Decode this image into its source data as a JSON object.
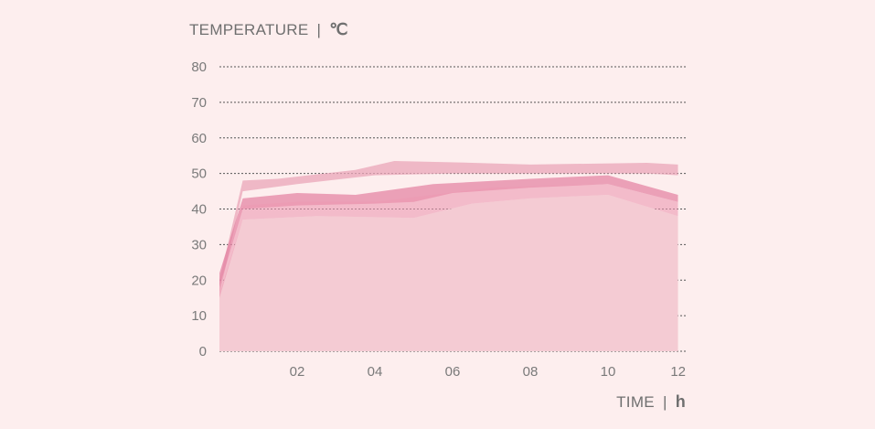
{
  "chart_data": {
    "type": "area",
    "y_axis_title": "TEMPERATURE",
    "y_axis_separator": "|",
    "y_axis_unit": "℃",
    "x_axis_title": "TIME",
    "x_axis_separator": "|",
    "x_axis_unit": "h",
    "ylim": [
      0,
      80
    ],
    "xlim": [
      0,
      12
    ],
    "y_ticks": [
      {
        "value": 0,
        "label": "0"
      },
      {
        "value": 10,
        "label": "10"
      },
      {
        "value": 20,
        "label": "20"
      },
      {
        "value": 30,
        "label": "30"
      },
      {
        "value": 40,
        "label": "40"
      },
      {
        "value": 50,
        "label": "50"
      },
      {
        "value": 60,
        "label": "60"
      },
      {
        "value": 70,
        "label": "70"
      },
      {
        "value": 80,
        "label": "80"
      }
    ],
    "x_ticks": [
      {
        "value": 2,
        "label": "02"
      },
      {
        "value": 4,
        "label": "04"
      },
      {
        "value": 6,
        "label": "06"
      },
      {
        "value": 8,
        "label": "08"
      },
      {
        "value": 10,
        "label": "10"
      },
      {
        "value": 12,
        "label": "12"
      }
    ],
    "grid": true,
    "bands": [
      {
        "color": "#eaa5b8",
        "opacity": 0.75,
        "upper": [
          [
            0,
            20
          ],
          [
            0.6,
            48
          ],
          [
            1.5,
            48.5
          ],
          [
            3.5,
            51
          ],
          [
            4.5,
            53.5
          ],
          [
            6.5,
            53
          ],
          [
            8,
            52.5
          ],
          [
            11,
            53
          ],
          [
            11.8,
            52.5
          ]
        ],
        "lower": [
          [
            0,
            16
          ],
          [
            0.6,
            45
          ],
          [
            2,
            47
          ],
          [
            4,
            49.5
          ],
          [
            6,
            50
          ],
          [
            8,
            50
          ],
          [
            11,
            50
          ],
          [
            11.8,
            49.5
          ]
        ]
      },
      {
        "color": "#e27fa0",
        "opacity": 0.7,
        "upper": [
          [
            0,
            22
          ],
          [
            0.6,
            43
          ],
          [
            2,
            44.5
          ],
          [
            3.5,
            44
          ],
          [
            5.5,
            47
          ],
          [
            8,
            48.5
          ],
          [
            10,
            49.5
          ],
          [
            11.8,
            44
          ]
        ],
        "lower": [
          [
            0,
            18
          ],
          [
            0.6,
            40
          ],
          [
            2,
            41
          ],
          [
            4,
            41.5
          ],
          [
            5,
            42
          ],
          [
            6,
            44.5
          ],
          [
            8,
            46
          ],
          [
            10,
            47
          ],
          [
            11.8,
            42
          ]
        ]
      },
      {
        "color": "#ec9ab2",
        "opacity": 0.6,
        "upper": [
          [
            0,
            18
          ],
          [
            0.6,
            41
          ],
          [
            2,
            42
          ],
          [
            4,
            42
          ],
          [
            5.5,
            44
          ],
          [
            7,
            46
          ],
          [
            10,
            47
          ],
          [
            11.8,
            42
          ]
        ],
        "lower": [
          [
            0,
            15
          ],
          [
            0.6,
            37
          ],
          [
            2.5,
            38
          ],
          [
            5,
            37.5
          ],
          [
            6.5,
            41.5
          ],
          [
            8,
            43
          ],
          [
            10,
            44
          ],
          [
            11.8,
            38
          ]
        ]
      }
    ],
    "base_area": {
      "color": "#f4cbd3",
      "top": [
        [
          0,
          16
        ],
        [
          0.6,
          37
        ],
        [
          2.5,
          38
        ],
        [
          5,
          37.5
        ],
        [
          6.5,
          41.5
        ],
        [
          8,
          43
        ],
        [
          10,
          44
        ],
        [
          11.8,
          38
        ]
      ]
    }
  }
}
